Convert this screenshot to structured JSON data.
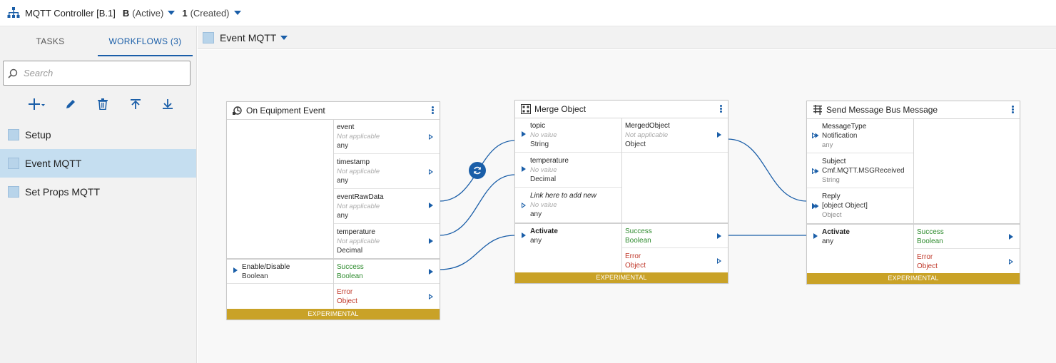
{
  "topbar": {
    "controller": "MQTT Controller [B.1]",
    "branch": "B",
    "branch_state": "(Active)",
    "version": "1",
    "version_state": "(Created)"
  },
  "left": {
    "tabs": [
      {
        "label": "TASKS",
        "active": false
      },
      {
        "label": "WORKFLOWS (3)",
        "active": true
      }
    ],
    "search_placeholder": "Search",
    "toolbar": [
      "add-icon",
      "edit-icon",
      "delete-icon",
      "move-top-icon",
      "move-bottom-icon"
    ],
    "workflows": [
      {
        "label": "Setup",
        "selected": false
      },
      {
        "label": "Event MQTT",
        "selected": true
      },
      {
        "label": "Set Props MQTT",
        "selected": false
      }
    ]
  },
  "subheader": {
    "title": "Event MQTT"
  },
  "nodes": {
    "equipment": {
      "title": "On Equipment Event",
      "outputs": [
        {
          "name": "event",
          "value": "Not applicable",
          "type": "any"
        },
        {
          "name": "timestamp",
          "value": "Not applicable",
          "type": "any"
        },
        {
          "name": "eventRawData",
          "value": "Not applicable",
          "type": "any"
        },
        {
          "name": "temperature",
          "value": "Not applicable",
          "type": "Decimal"
        }
      ],
      "activation_input": {
        "name": "Enable/Disable",
        "type": "Boolean"
      },
      "success": {
        "name": "Success",
        "type": "Boolean"
      },
      "error": {
        "name": "Error",
        "type": "Object"
      },
      "banner": "EXPERIMENTAL"
    },
    "merge": {
      "title": "Merge Object",
      "inputs": [
        {
          "name": "topic",
          "value": "No value",
          "type": "String"
        },
        {
          "name": "temperature",
          "value": "No value",
          "type": "Decimal"
        },
        {
          "name": "Link here to add new",
          "value": "No value",
          "type": "any"
        }
      ],
      "output": {
        "name": "MergedObject",
        "value": "Not applicable",
        "type": "Object"
      },
      "activate": {
        "name": "Activate",
        "type": "any"
      },
      "success": {
        "name": "Success",
        "type": "Boolean"
      },
      "error": {
        "name": "Error",
        "type": "Object"
      },
      "banner": "EXPERIMENTAL"
    },
    "send": {
      "title": "Send Message Bus Message",
      "inputs": [
        {
          "name": "MessageType",
          "value": "Notification",
          "type": "any"
        },
        {
          "name": "Subject",
          "value": "Cmf.MQTT.MSGReceived",
          "type": "String"
        },
        {
          "name": "Reply",
          "value": "[object Object]",
          "type": "Object"
        }
      ],
      "activate": {
        "name": "Activate",
        "type": "any"
      },
      "success": {
        "name": "Success",
        "type": "Boolean"
      },
      "error": {
        "name": "Error",
        "type": "Object"
      },
      "banner": "EXPERIMENTAL"
    }
  },
  "colors": {
    "accent": "#1a5ea8",
    "banner": "#c9a227",
    "success": "#2e8b2e",
    "error": "#c0392b",
    "selected_row": "#c5def0"
  }
}
